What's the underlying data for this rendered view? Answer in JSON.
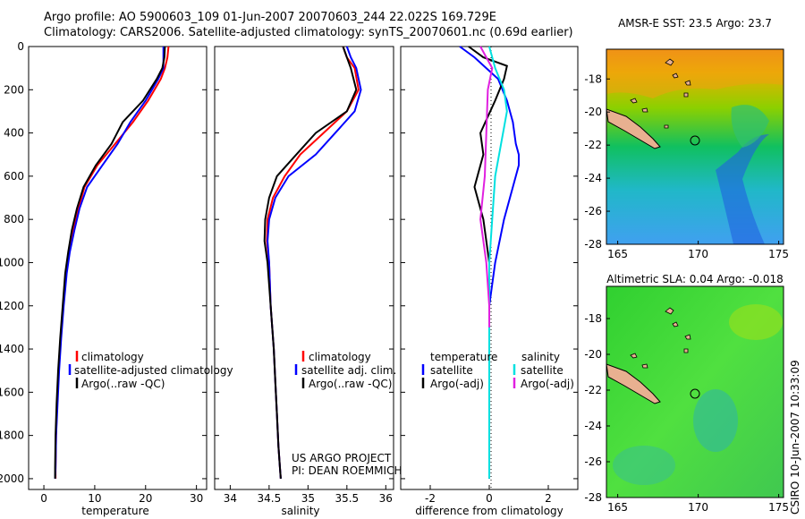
{
  "header": {
    "line1": "Argo profile: AO 5900603_109 01-Jun-2007 20070603_244 22.022S 169.729E",
    "line2": "Climatology: CARS2006. Satellite-adjusted climatology: synTS_20070601.nc (0.69d earlier)"
  },
  "side_text": "CSIRO 10-Jun-2007 10:33:09",
  "project_text": [
    "US ARGO PROJECT",
    "PI: DEAN ROEMMICH"
  ],
  "colors": {
    "climatology": "#ff0000",
    "satellite": "#0000ff",
    "argo": "#000000",
    "cyan": "#00e0e0",
    "magenta": "#e020e0"
  },
  "chart_data": [
    {
      "type": "line",
      "xlabel": "temperature",
      "ylabel": "",
      "xlim": [
        -3,
        32
      ],
      "ylim": [
        2050,
        0
      ],
      "xticks": [
        0,
        10,
        20,
        30
      ],
      "yticks": [
        0,
        200,
        400,
        600,
        800,
        1000,
        1200,
        1400,
        1600,
        1800,
        2000
      ],
      "series": [
        {
          "name": "climatology",
          "color": "#ff0000",
          "x": [
            24.5,
            24.3,
            23.8,
            23.0,
            20.5,
            17.5,
            14.0,
            10.5,
            8.0,
            6.8,
            5.8,
            5.0,
            4.4,
            3.8,
            3.3,
            2.9,
            2.6,
            2.4,
            2.3,
            2.3
          ],
          "y": [
            0,
            50,
            100,
            150,
            250,
            350,
            450,
            550,
            650,
            750,
            850,
            950,
            1050,
            1200,
            1350,
            1500,
            1650,
            1800,
            1950,
            2000
          ]
        },
        {
          "name": "satellite-adjusted climatology",
          "color": "#0000ff",
          "x": [
            23.5,
            23.5,
            23.5,
            22.5,
            20.0,
            17.0,
            14.5,
            11.5,
            8.5,
            7.0,
            6.0,
            5.1,
            4.5,
            3.9,
            3.4,
            3.0,
            2.7,
            2.4,
            2.3,
            2.2
          ],
          "y": [
            0,
            50,
            100,
            150,
            250,
            350,
            450,
            550,
            650,
            750,
            850,
            950,
            1050,
            1200,
            1350,
            1500,
            1650,
            1800,
            1950,
            2000
          ]
        },
        {
          "name": "Argo(..raw -QC)",
          "color": "#000000",
          "x": [
            23.8,
            23.7,
            23.3,
            22.2,
            19.5,
            15.5,
            13.3,
            10.2,
            7.8,
            6.5,
            5.5,
            4.8,
            4.2,
            3.7,
            3.2,
            2.8,
            2.5,
            2.3,
            2.2,
            2.2
          ],
          "y": [
            0,
            50,
            100,
            150,
            250,
            350,
            450,
            550,
            650,
            750,
            850,
            950,
            1050,
            1200,
            1350,
            1500,
            1650,
            1800,
            1950,
            2000
          ]
        }
      ],
      "legend": {
        "placement": "lower-right",
        "entries": [
          "climatology",
          "satellite-adjusted climatology",
          "Argo(..raw -QC)"
        ]
      }
    },
    {
      "type": "line",
      "xlabel": "salinity",
      "ylabel": "",
      "xlim": [
        33.8,
        36.1
      ],
      "ylim": [
        2050,
        0
      ],
      "xticks": [
        34,
        34.5,
        35,
        35.5,
        36
      ],
      "series": [
        {
          "name": "climatology",
          "color": "#ff0000",
          "x": [
            35.45,
            35.5,
            35.6,
            35.65,
            35.5,
            35.2,
            34.9,
            34.7,
            34.55,
            34.48,
            34.47,
            34.5,
            34.52,
            34.56,
            34.58,
            34.6,
            34.62,
            34.64,
            34.65
          ],
          "y": [
            0,
            50,
            100,
            200,
            300,
            400,
            500,
            600,
            700,
            800,
            900,
            1000,
            1200,
            1400,
            1550,
            1700,
            1850,
            1950,
            2000
          ]
        },
        {
          "name": "satellite adj. clim.",
          "color": "#0000ff",
          "x": [
            35.5,
            35.55,
            35.62,
            35.68,
            35.6,
            35.35,
            35.1,
            34.75,
            34.58,
            34.5,
            34.48,
            34.5,
            34.52,
            34.56,
            34.58,
            34.6,
            34.62,
            34.64,
            34.65
          ],
          "y": [
            0,
            50,
            100,
            200,
            300,
            400,
            500,
            600,
            700,
            800,
            900,
            1000,
            1200,
            1400,
            1550,
            1700,
            1850,
            1950,
            2000
          ]
        },
        {
          "name": "Argo(..raw -QC)",
          "color": "#000000",
          "x": [
            35.45,
            35.5,
            35.55,
            35.62,
            35.5,
            35.1,
            34.85,
            34.6,
            34.5,
            34.45,
            34.44,
            34.48,
            34.52,
            34.56,
            34.58,
            34.6,
            34.62,
            34.64,
            34.65
          ],
          "y": [
            0,
            50,
            100,
            200,
            300,
            400,
            500,
            600,
            700,
            800,
            900,
            1000,
            1200,
            1400,
            1550,
            1700,
            1850,
            1950,
            2000
          ]
        }
      ],
      "legend": {
        "placement": "lower-right",
        "entries": [
          "climatology",
          "satellite adj. clim.",
          "Argo(..raw -QC)"
        ]
      }
    },
    {
      "type": "line",
      "xlabel": "difference from climatology",
      "ylabel": "",
      "xlim": [
        -3.0,
        3.0
      ],
      "ylim": [
        2050,
        0
      ],
      "xticks": [
        -2,
        0,
        2
      ],
      "series": [
        {
          "name": "temperature satellite",
          "color": "#0000ff",
          "x": [
            -1.0,
            -0.5,
            0.3,
            0.6,
            0.8,
            0.9,
            1.0,
            1.0,
            0.8,
            0.5,
            0.2,
            0.0,
            0.0,
            0.0,
            0.0,
            0.0
          ],
          "y": [
            0,
            50,
            150,
            250,
            350,
            450,
            500,
            550,
            650,
            800,
            1000,
            1200,
            1400,
            1600,
            1800,
            2000
          ]
        },
        {
          "name": "temperature Argo(-adj)",
          "color": "#000000",
          "x": [
            -0.7,
            -0.2,
            0.6,
            0.5,
            0.2,
            -0.3,
            -0.2,
            -0.5,
            -0.2,
            0.0,
            0.0,
            0.0
          ],
          "y": [
            0,
            50,
            90,
            150,
            250,
            400,
            500,
            650,
            800,
            1000,
            1500,
            2000
          ]
        },
        {
          "name": "salinity satellite",
          "color": "#00e0e0",
          "x": [
            0.0,
            0.2,
            0.5,
            0.6,
            0.4,
            0.2,
            0.1,
            0.0,
            0.0,
            0.0
          ],
          "y": [
            0,
            100,
            200,
            300,
            450,
            600,
            800,
            1000,
            1500,
            2000
          ]
        },
        {
          "name": "salinity Argo(-adj)",
          "color": "#e020e0",
          "x": [
            -0.3,
            -0.1,
            0.1,
            -0.05,
            -0.1,
            -0.15,
            -0.3,
            -0.1,
            0.0,
            0.0
          ],
          "y": [
            0,
            50,
            100,
            200,
            400,
            600,
            800,
            1000,
            1200,
            1300
          ]
        }
      ],
      "legend": {
        "placement": "lower-center",
        "temperature_title": "temperature",
        "salinity_title": "salinity",
        "temperature_entries": [
          "satellite",
          "Argo(-adj)"
        ],
        "salinity_entries": [
          "satellite",
          "Argo(-adj)"
        ]
      }
    },
    {
      "type": "heatmap",
      "title": "AMSR-E SST: 23.5 Argo: 23.7",
      "xlim": [
        164.3,
        175.3
      ],
      "ylim": [
        -28,
        -16.2
      ],
      "xticks": [
        165,
        170,
        175
      ],
      "yticks": [
        -18,
        -20,
        -22,
        -24,
        -26,
        -28
      ],
      "marker": {
        "lon": 169.729,
        "lat": -22.022
      }
    },
    {
      "type": "heatmap",
      "title": "Altimetric SLA: 0.04 Argo: -0.018",
      "xlim": [
        164.3,
        175.3
      ],
      "ylim": [
        -28,
        -16.2
      ],
      "xticks": [
        165,
        170,
        175
      ],
      "yticks": [
        -18,
        -20,
        -22,
        -24,
        -26,
        -28
      ],
      "marker": {
        "lon": 169.729,
        "lat": -22.022
      }
    }
  ]
}
